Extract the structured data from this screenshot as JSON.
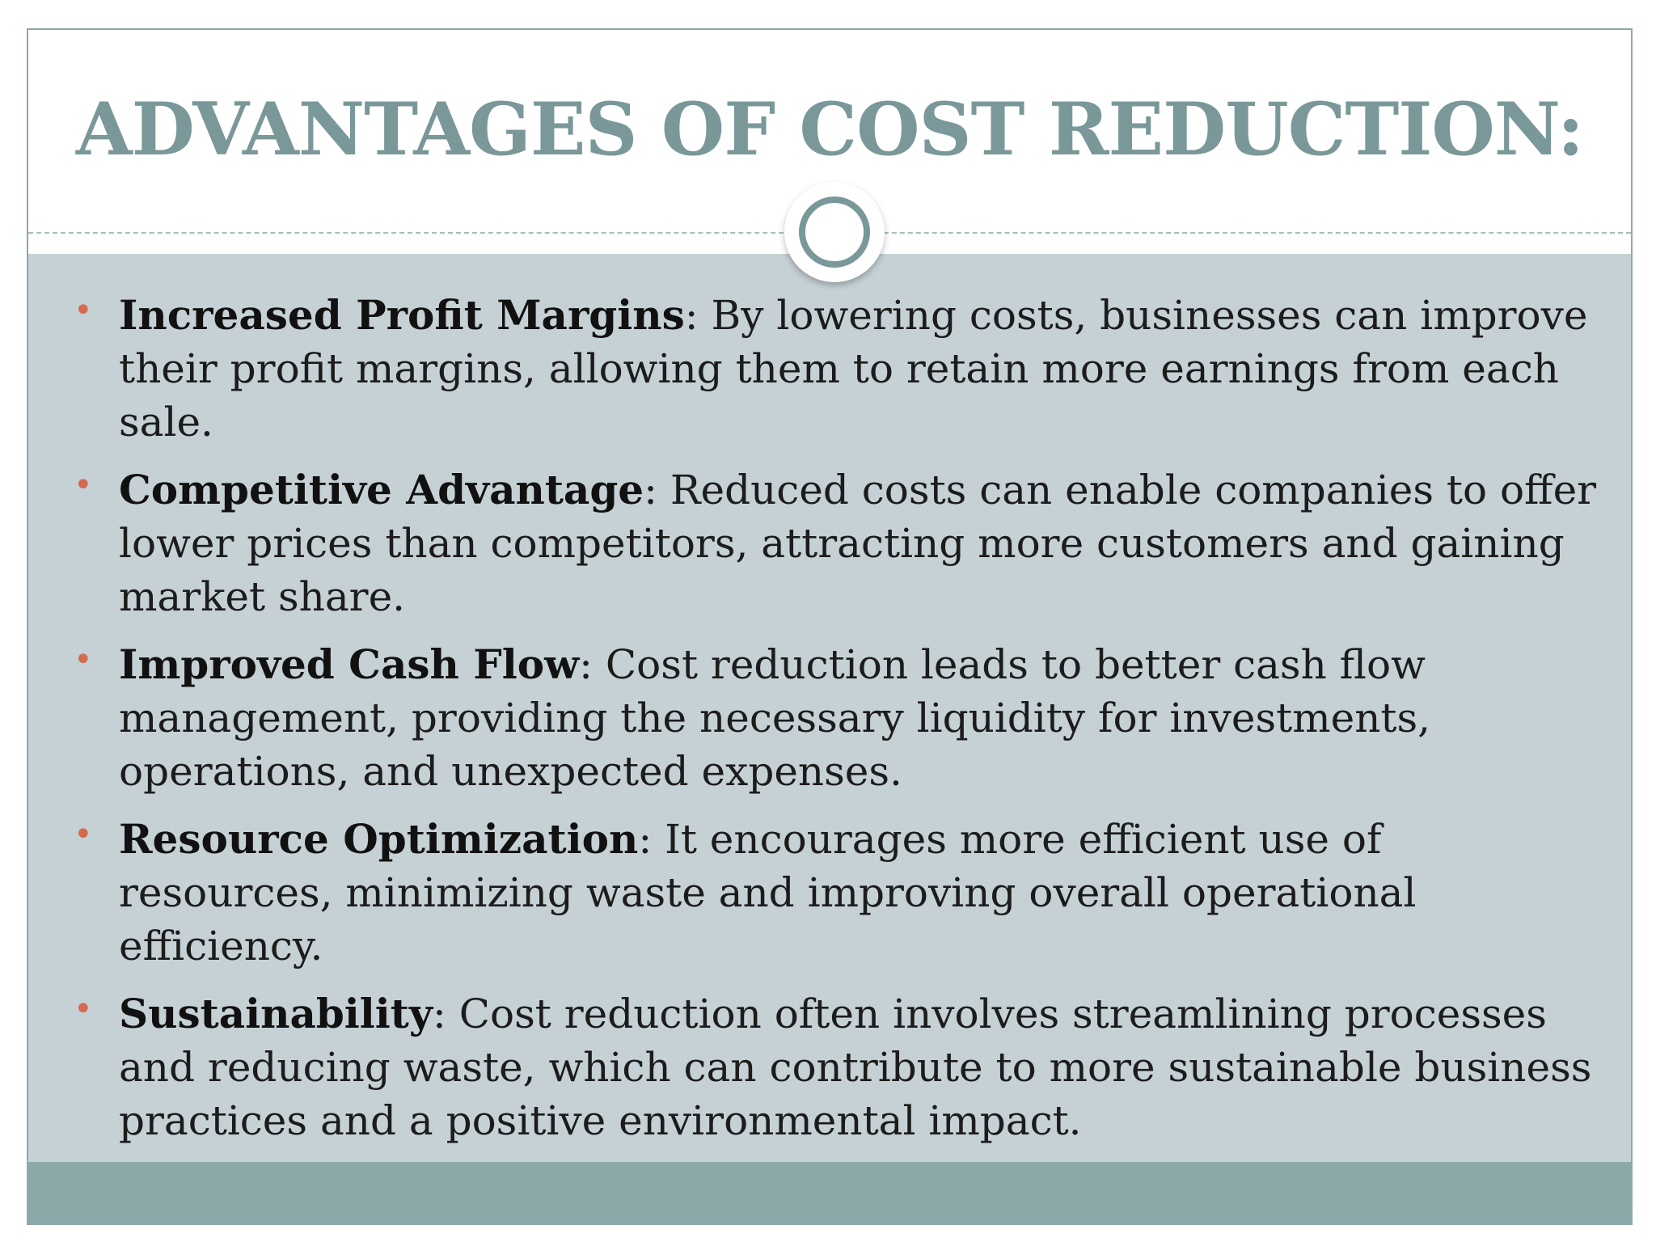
{
  "slide": {
    "title": "ADVANTAGES OF COST REDUCTION:",
    "bullet_marker": "•",
    "bullets": [
      {
        "term": "Increased Profit Margins",
        "separator": ": ",
        "text": "By lowering costs, businesses can improve their profit margins, allowing them to retain more earnings from each sale."
      },
      {
        "term": "Competitive Advantage",
        "separator": ": ",
        "text": "Reduced costs can enable companies to offer lower prices than competitors, attracting more customers and gaining market share."
      },
      {
        "term": "Improved Cash Flow",
        "separator": ": ",
        "text": "Cost reduction leads to better cash flow management, providing the necessary liquidity for investments, operations, and unexpected expenses."
      },
      {
        "term": "Resource Optimization",
        "separator": ": ",
        "text": "It encourages more efficient use of resources, minimizing waste and improving overall operational efficiency."
      },
      {
        "term": "Sustainability",
        "separator": ": ",
        "text": "Cost reduction often involves streamlining processes and reducing waste, which can contribute to more sustainable business practices and a positive environmental impact."
      }
    ]
  },
  "colors": {
    "title": "#7a9899",
    "content_background": "#c6d1d6",
    "footer_band": "#8ca9aa",
    "bullet_marker": "#d46a50",
    "text": "#1c1c1c"
  }
}
